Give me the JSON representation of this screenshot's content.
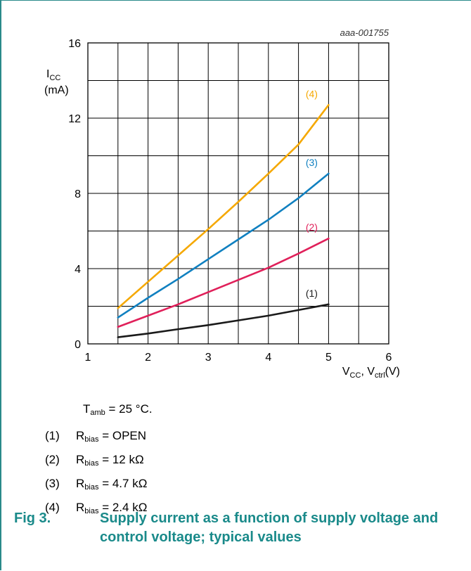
{
  "chart_data": {
    "type": "line",
    "watermark": "aaa-001755",
    "ylabel": "I",
    "ylabel_sub": "CC",
    "yunit": "(mA)",
    "xlabel_parts": [
      "V",
      "CC",
      ", V",
      "ctrl",
      "(V)"
    ],
    "xlim": [
      1,
      6
    ],
    "ylim": [
      0,
      16
    ],
    "x_ticks": [
      1,
      2,
      3,
      4,
      5,
      6
    ],
    "y_ticks": [
      0,
      4,
      8,
      12,
      16
    ],
    "grid": true,
    "series": [
      {
        "name": "(1)",
        "color": "#1a1a1a",
        "x": [
          1.5,
          2,
          2.5,
          3,
          3.5,
          4,
          4.5,
          5
        ],
        "y": [
          0.35,
          0.55,
          0.78,
          1.0,
          1.25,
          1.5,
          1.8,
          2.1
        ]
      },
      {
        "name": "(2)",
        "color": "#e0205a",
        "x": [
          1.5,
          2,
          2.5,
          3,
          3.5,
          4,
          4.5,
          5
        ],
        "y": [
          0.9,
          1.5,
          2.1,
          2.75,
          3.4,
          4.05,
          4.8,
          5.6
        ]
      },
      {
        "name": "(3)",
        "color": "#1080c0",
        "x": [
          1.5,
          2,
          2.5,
          3,
          3.5,
          4,
          4.5,
          5
        ],
        "y": [
          1.4,
          2.45,
          3.45,
          4.5,
          5.55,
          6.6,
          7.75,
          9.05
        ]
      },
      {
        "name": "(4)",
        "color": "#f5a800",
        "x": [
          1.5,
          2,
          2.5,
          3,
          3.5,
          4,
          4.5,
          5
        ],
        "y": [
          1.9,
          3.3,
          4.7,
          6.1,
          7.55,
          9.05,
          10.6,
          12.7
        ]
      }
    ]
  },
  "notes": {
    "tamb": {
      "pre": "T",
      "sub": "amb",
      "post": " = 25 °C."
    },
    "legend": [
      {
        "idx": "(1)",
        "pre": "R",
        "sub": "bias",
        "post": " = OPEN"
      },
      {
        "idx": "(2)",
        "pre": "R",
        "sub": "bias",
        "post": " = 12 kΩ"
      },
      {
        "idx": "(3)",
        "pre": "R",
        "sub": "bias",
        "post": " = 4.7 kΩ"
      },
      {
        "idx": "(4)",
        "pre": "R",
        "sub": "bias",
        "post": " = 2.4 kΩ"
      }
    ]
  },
  "caption": {
    "fig": "Fig 3.",
    "title": "Supply current as a function of supply voltage and control voltage; typical values"
  }
}
